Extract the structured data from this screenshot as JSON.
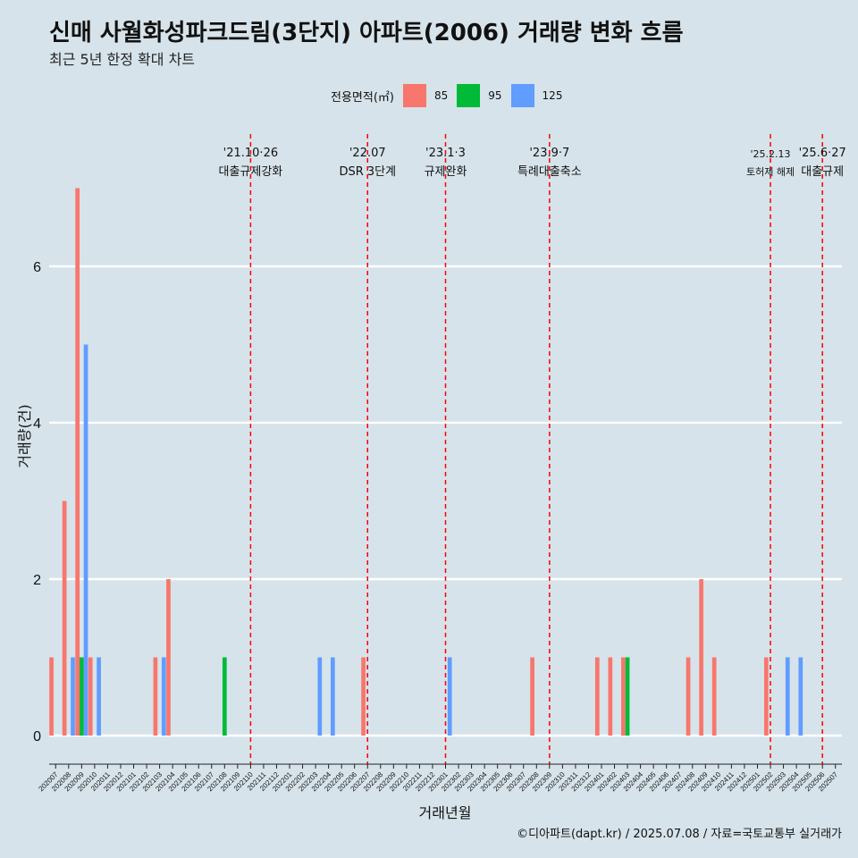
{
  "title": "신매 사월화성파크드림(3단지) 아파트(2006) 거래량 변화 흐름",
  "subtitle": "최근 5년 한정 확대 차트",
  "caption": "©디아파트(dapt.kr) / 2025.07.08 / 자료=국토교통부 실거래가",
  "colors": {
    "s85": "#f8766d",
    "s95": "#00ba38",
    "s125": "#619cff",
    "vline": "#ff0000",
    "background": "#d6e3ea",
    "grid": "#ffffff"
  },
  "chart_data": {
    "type": "bar",
    "title": "신매 사월화성파크드림(3단지) 아파트(2006) 거래량 변화 흐름",
    "subtitle": "최근 5년 한정 확대 차트",
    "xlabel": "거래년월",
    "ylabel": "거래량(건)",
    "ylim": [
      0,
      7
    ],
    "yticks": [
      0,
      2,
      4,
      6
    ],
    "legend_title": "전용면적(㎡)",
    "legend_position": "top",
    "grid": "horizontal",
    "categories": [
      "202007",
      "202008",
      "202009",
      "202010",
      "202011",
      "202012",
      "202101",
      "202102",
      "202103",
      "202104",
      "202105",
      "202106",
      "202107",
      "202108",
      "202109",
      "202110",
      "202111",
      "202112",
      "202201",
      "202202",
      "202203",
      "202204",
      "202205",
      "202206",
      "202207",
      "202208",
      "202209",
      "202210",
      "202211",
      "202212",
      "202301",
      "202302",
      "202303",
      "202304",
      "202305",
      "202306",
      "202307",
      "202308",
      "202309",
      "202310",
      "202311",
      "202312",
      "202401",
      "202402",
      "202403",
      "202404",
      "202405",
      "202406",
      "202407",
      "202408",
      "202409",
      "202410",
      "202411",
      "202412",
      "202501",
      "202502",
      "202503",
      "202504",
      "202505",
      "202506",
      "202507"
    ],
    "series": [
      {
        "name": "85",
        "values": [
          1,
          3,
          7,
          1,
          0,
          0,
          0,
          0,
          1,
          2,
          0,
          0,
          0,
          0,
          0,
          0,
          0,
          0,
          0,
          0,
          0,
          0,
          0,
          0,
          1,
          0,
          0,
          0,
          0,
          0,
          0,
          0,
          0,
          0,
          0,
          0,
          0,
          1,
          0,
          0,
          0,
          0,
          1,
          1,
          1,
          0,
          0,
          0,
          0,
          1,
          2,
          1,
          0,
          0,
          0,
          1,
          0,
          0,
          0,
          0,
          0
        ]
      },
      {
        "name": "95",
        "values": [
          0,
          0,
          1,
          0,
          0,
          0,
          0,
          0,
          0,
          0,
          0,
          0,
          0,
          1,
          0,
          0,
          0,
          0,
          0,
          0,
          0,
          0,
          0,
          0,
          0,
          0,
          0,
          0,
          0,
          0,
          0,
          0,
          0,
          0,
          0,
          0,
          0,
          0,
          0,
          0,
          0,
          0,
          0,
          0,
          1,
          0,
          0,
          0,
          0,
          0,
          0,
          0,
          0,
          0,
          0,
          0,
          0,
          0,
          0,
          0,
          0
        ]
      },
      {
        "name": "125",
        "values": [
          0,
          1,
          5,
          1,
          0,
          0,
          0,
          0,
          1,
          0,
          0,
          0,
          0,
          0,
          0,
          0,
          0,
          0,
          0,
          0,
          1,
          1,
          0,
          0,
          0,
          0,
          0,
          0,
          0,
          0,
          1,
          0,
          0,
          0,
          0,
          0,
          0,
          0,
          0,
          0,
          0,
          0,
          0,
          0,
          0,
          0,
          0,
          0,
          0,
          0,
          0,
          0,
          0,
          0,
          0,
          0,
          1,
          1,
          0,
          0,
          0
        ]
      }
    ],
    "annotations": [
      {
        "x": "202110",
        "label_date": "'21.10·26",
        "label_text": "대출규제강화"
      },
      {
        "x": "202207",
        "label_date": "'22.07",
        "label_text": "DSR 3단계"
      },
      {
        "x": "202301",
        "label_date": "'23.1·3",
        "label_text": "규제완화"
      },
      {
        "x": "202309",
        "label_date": "'23.9·7",
        "label_text": "특례대출축소"
      },
      {
        "x": "202502",
        "label_date": "'25.2.13",
        "label_text": "토허제 해제"
      },
      {
        "x": "202506",
        "label_date": "'25.6·27",
        "label_text": "대출규제"
      }
    ]
  }
}
